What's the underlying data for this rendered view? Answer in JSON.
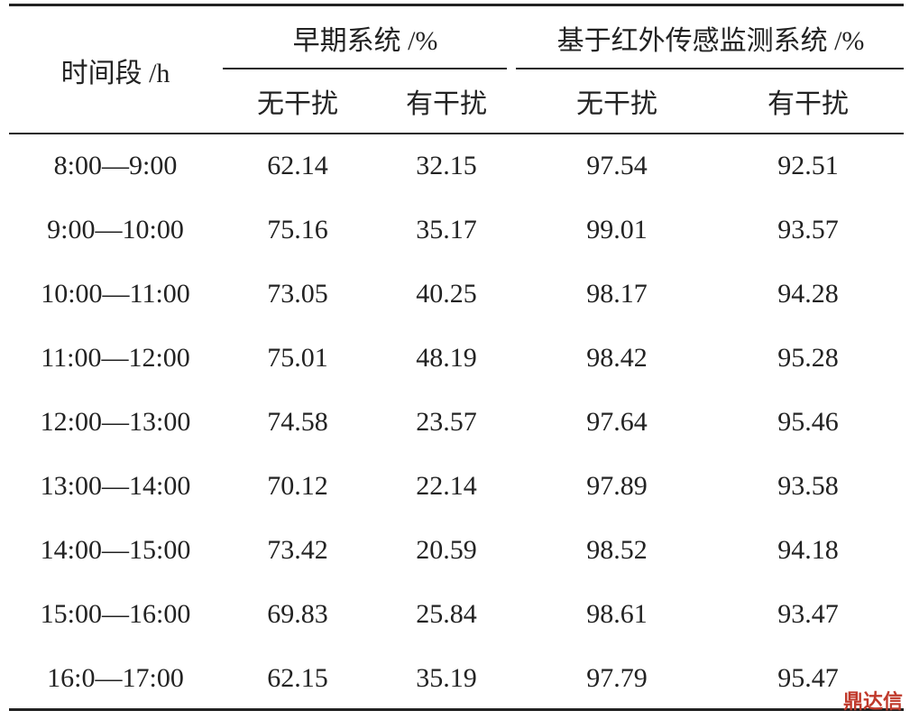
{
  "table": {
    "header": {
      "time": "时间段 /h",
      "groups": [
        "早期系统 /%",
        "基于红外传感监测系统 /%"
      ],
      "subheaders": [
        "无干扰",
        "有干扰",
        "无干扰",
        "有干扰"
      ]
    },
    "rows": [
      [
        "8:00—9:00",
        "62.14",
        "32.15",
        "97.54",
        "92.51"
      ],
      [
        "9:00—10:00",
        "75.16",
        "35.17",
        "99.01",
        "93.57"
      ],
      [
        "10:00—11:00",
        "73.05",
        "40.25",
        "98.17",
        "94.28"
      ],
      [
        "11:00—12:00",
        "75.01",
        "48.19",
        "98.42",
        "95.28"
      ],
      [
        "12:00—13:00",
        "74.58",
        "23.57",
        "97.64",
        "95.46"
      ],
      [
        "13:00—14:00",
        "70.12",
        "22.14",
        "97.89",
        "93.58"
      ],
      [
        "14:00—15:00",
        "73.42",
        "20.59",
        "98.52",
        "94.18"
      ],
      [
        "15:00—16:00",
        "69.83",
        "25.84",
        "98.61",
        "93.47"
      ],
      [
        "16:0—17:00",
        "62.15",
        "35.19",
        "97.79",
        "95.47"
      ]
    ]
  },
  "watermark": "鼎达信"
}
